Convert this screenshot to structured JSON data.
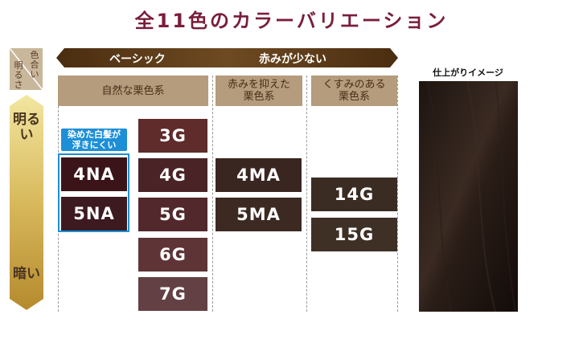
{
  "title": "全11色のカラーバリエーション",
  "axis": {
    "corner_hue": "色合い",
    "corner_brightness": "明るさ",
    "bright": "明るい",
    "dark": "暗い"
  },
  "banner": {
    "basic": "ベーシック",
    "less_red": "赤みが少ない"
  },
  "categories": {
    "natural": "自然な栗色系",
    "suppressed_red_line1": "赤みを抑えた",
    "suppressed_red_line2": "栗色系",
    "dull_line1": "くすみのある",
    "dull_line2": "栗色系"
  },
  "badge": {
    "line1": "染めた白髪が",
    "line2": "浮きにくい"
  },
  "swatches": {
    "na4": {
      "label": "4NA",
      "color": "#3b1419"
    },
    "na5": {
      "label": "5NA",
      "color": "#3d1a20"
    },
    "g3": {
      "label": "3G",
      "color": "#5f2b2b"
    },
    "g4": {
      "label": "4G",
      "color": "#4a2326"
    },
    "g5": {
      "label": "5G",
      "color": "#52282c"
    },
    "g6": {
      "label": "6G",
      "color": "#5e3437"
    },
    "g7": {
      "label": "7G",
      "color": "#624043"
    },
    "ma4": {
      "label": "4MA",
      "color": "#3a2620"
    },
    "ma5": {
      "label": "5MA",
      "color": "#3c2a22"
    },
    "g14": {
      "label": "14G",
      "color": "#3a2c22"
    },
    "g15": {
      "label": "15G",
      "color": "#3f3026"
    }
  },
  "preview_label": "仕上がりイメージ",
  "colors": {
    "title": "#7a1e3a",
    "accent_blue": "#1d8fd6",
    "banner_brown": "#5a3a1a",
    "header_tan": "#b49c7c"
  }
}
